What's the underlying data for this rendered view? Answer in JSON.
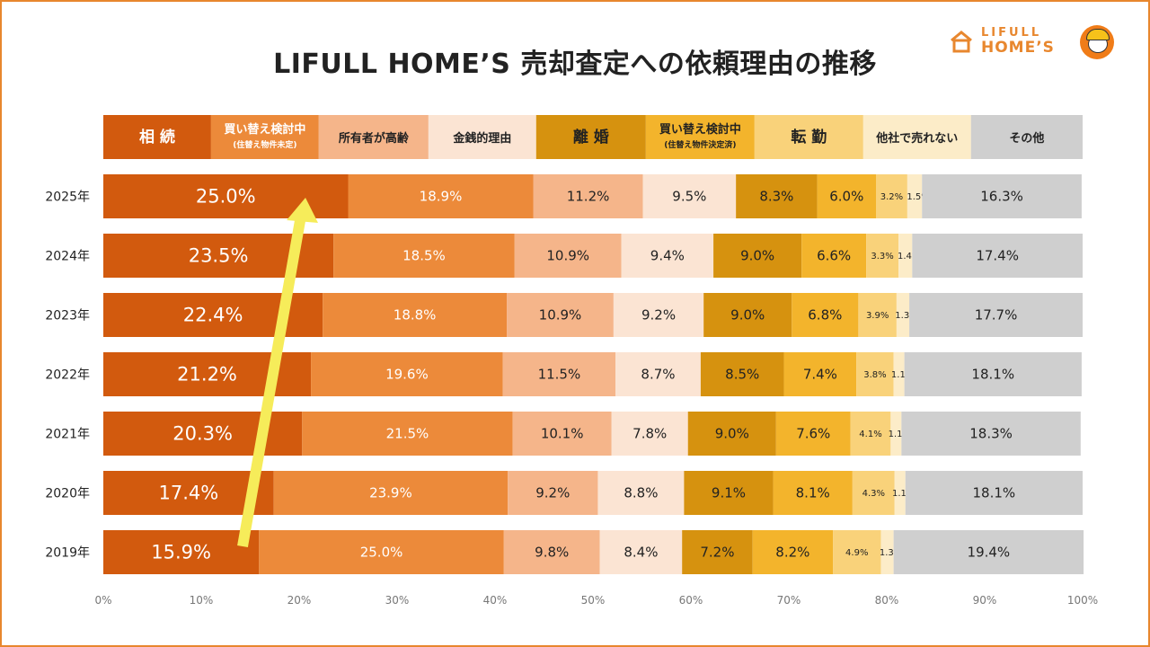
{
  "header": {
    "title": "LIFULL HOME’S 売却査定への依頼理由の推移",
    "logo_line1": "LIFULL",
    "logo_line2": "HOME’S"
  },
  "chart_data": {
    "type": "bar",
    "orientation": "horizontal",
    "stacked": true,
    "xlim": [
      0,
      100
    ],
    "x_ticks": [
      "0%",
      "10%",
      "20%",
      "30%",
      "40%",
      "50%",
      "60%",
      "70%",
      "80%",
      "90%",
      "100%"
    ],
    "categories": [
      "2025年",
      "2024年",
      "2023年",
      "2022年",
      "2021年",
      "2020年",
      "2019年"
    ],
    "series": [
      {
        "name": "相 続",
        "sub": "",
        "color": "#d25a0e",
        "text_color": "#ffffff",
        "values": [
          25.0,
          23.5,
          22.4,
          21.2,
          20.3,
          17.4,
          15.9
        ]
      },
      {
        "name": "買い替え検討中",
        "sub": "(住替え物件未定)",
        "color": "#ec8a3a",
        "text_color": "#ffffff",
        "values": [
          18.9,
          18.5,
          18.8,
          19.6,
          21.5,
          23.9,
          25.0
        ]
      },
      {
        "name": "所有者が高齢",
        "sub": "",
        "color": "#f5b58a",
        "text_color": "#222222",
        "values": [
          11.2,
          10.9,
          10.9,
          11.5,
          10.1,
          9.2,
          9.8
        ]
      },
      {
        "name": "金銭的理由",
        "sub": "",
        "color": "#fbe4d3",
        "text_color": "#222222",
        "values": [
          9.5,
          9.4,
          9.2,
          8.7,
          7.8,
          8.8,
          8.4
        ]
      },
      {
        "name": "離 婚",
        "sub": "",
        "color": "#d6920f",
        "text_color": "#222222",
        "values": [
          8.3,
          9.0,
          9.0,
          8.5,
          9.0,
          9.1,
          7.2
        ]
      },
      {
        "name": "買い替え検討中",
        "sub": "(住替え物件決定済)",
        "color": "#f3b42c",
        "text_color": "#222222",
        "values": [
          6.0,
          6.6,
          6.8,
          7.4,
          7.6,
          8.1,
          8.2
        ]
      },
      {
        "name": "転 勤",
        "sub": "",
        "color": "#f9d27a",
        "text_color": "#222222",
        "values": [
          3.2,
          3.3,
          3.9,
          3.8,
          4.1,
          4.3,
          4.9
        ]
      },
      {
        "name": "他社で売れない",
        "sub": "",
        "color": "#fcecc8",
        "text_color": "#222222",
        "values": [
          1.5,
          1.4,
          1.3,
          1.1,
          1.1,
          1.1,
          1.3
        ]
      },
      {
        "name": "その他",
        "sub": "",
        "color": "#cfcfcf",
        "text_color": "#222222",
        "values": [
          16.3,
          17.4,
          17.7,
          18.1,
          18.3,
          18.1,
          19.4
        ]
      }
    ],
    "labels": [
      [
        "25.0%",
        "18.9%",
        "11.2%",
        "9.5%",
        "8.3%",
        "6.0%",
        "3.2%",
        "1.5%",
        "16.3%"
      ],
      [
        "23.5%",
        "18.5%",
        "10.9%",
        "9.4%",
        "9.0%",
        "6.6%",
        "3.3%",
        "1.4%",
        "17.4%"
      ],
      [
        "22.4%",
        "18.8%",
        "10.9%",
        "9.2%",
        "9.0%",
        "6.8%",
        "3.9%",
        "1.3%",
        "17.7%"
      ],
      [
        "21.2%",
        "19.6%",
        "11.5%",
        "8.7%",
        "8.5%",
        "7.4%",
        "3.8%",
        "1.1%",
        "18.1%"
      ],
      [
        "20.3%",
        "21.5%",
        "10.1%",
        "7.8%",
        "9.0%",
        "7.6%",
        "4.1%",
        "1.1%",
        "18.3%"
      ],
      [
        "17.4%",
        "23.9%",
        "9.2%",
        "8.8%",
        "9.1%",
        "8.1%",
        "4.3%",
        "1.1%",
        "18.1%"
      ],
      [
        "15.9%",
        "25.0%",
        "9.8%",
        "8.4%",
        "7.2%",
        "8.2%",
        "4.9%",
        "1.3%",
        "19.4%"
      ]
    ],
    "annotation": "upward arrow highlighting growth of 相続 from 2019 to 2025",
    "arrow_color": "#f6ec5a"
  }
}
